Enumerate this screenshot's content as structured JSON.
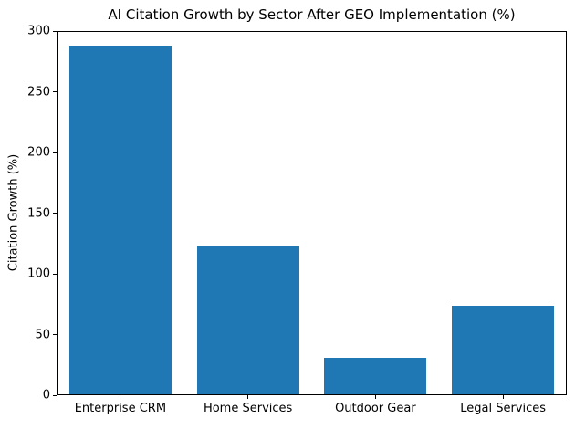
{
  "chart_data": {
    "type": "bar",
    "title": "AI Citation Growth by Sector After GEO Implementation (%)",
    "xlabel": "",
    "ylabel": "Citation Growth (%)",
    "categories": [
      "Enterprise CRM",
      "Home Services",
      "Outdoor Gear",
      "Legal Services"
    ],
    "values": [
      287,
      122,
      30,
      73
    ],
    "ylim": [
      0,
      300
    ],
    "yticks": [
      0,
      50,
      100,
      150,
      200,
      250,
      300
    ],
    "bar_color": "#1f77b4",
    "bar_width_fraction": 0.8,
    "grid": false,
    "legend": null,
    "text_color": "#000000",
    "background_color": "#ffffff"
  }
}
